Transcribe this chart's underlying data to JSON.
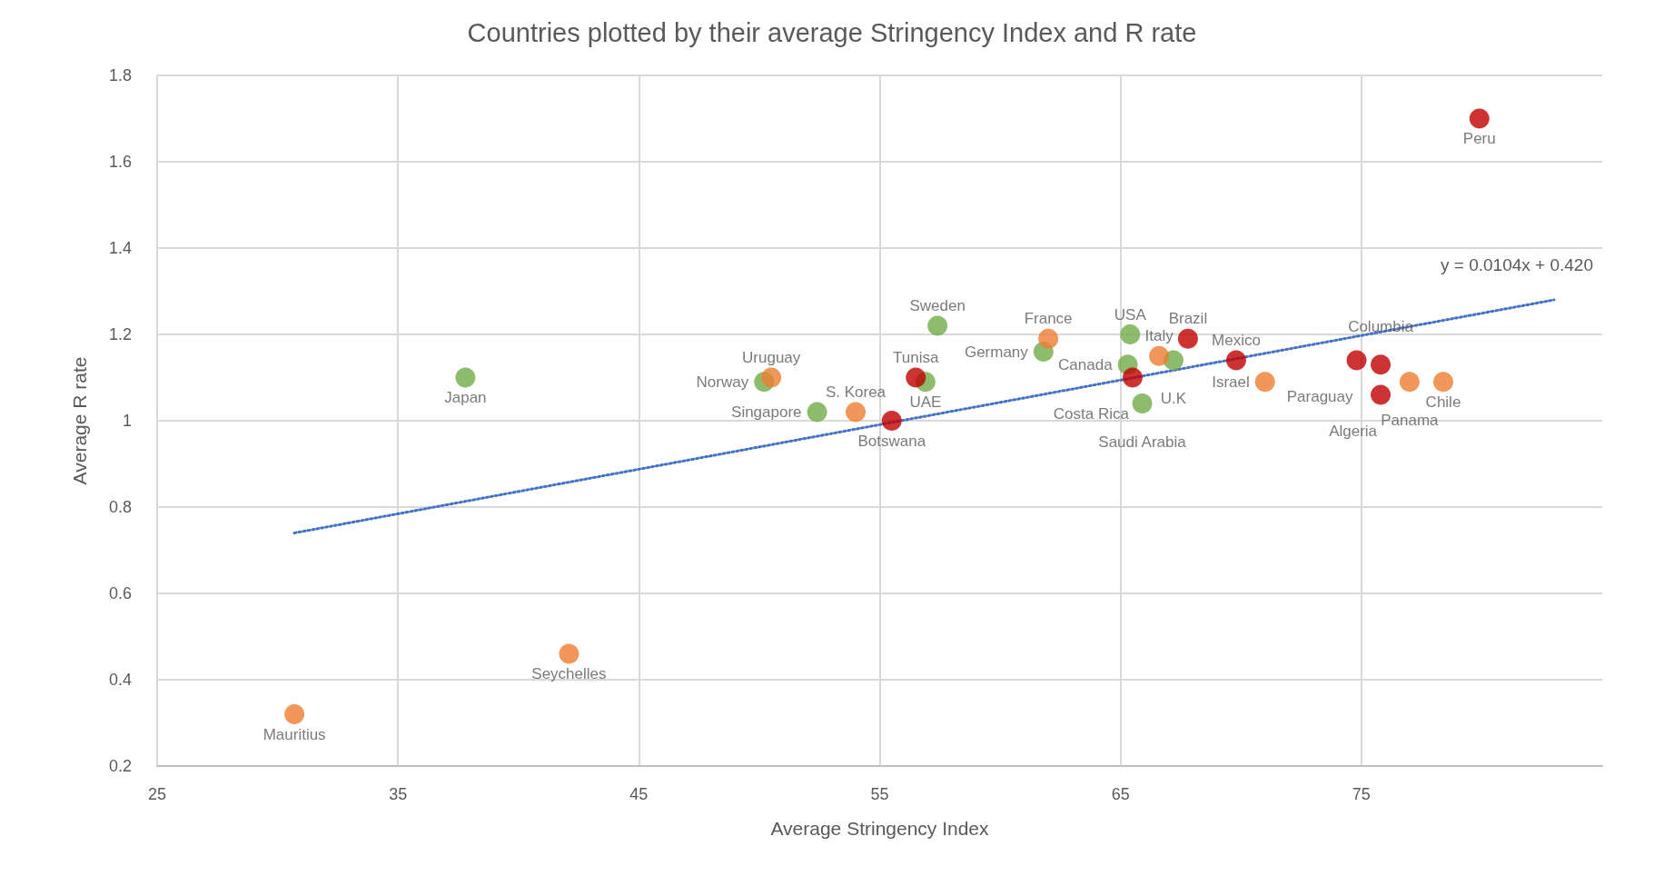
{
  "chart_data": {
    "type": "scatter",
    "title": "Countries plotted by their average Stringency Index and R rate",
    "xlabel": "Average Stringency Index",
    "ylabel": "Average R rate",
    "xlim": [
      25,
      85
    ],
    "xticks": [
      25,
      35,
      45,
      55,
      65,
      75
    ],
    "ylim": [
      0.2,
      1.8
    ],
    "yticks": [
      0.2,
      0.4,
      0.6,
      0.8,
      1,
      1.2,
      1.4,
      1.6,
      1.8
    ],
    "grid": true,
    "marker": "circle",
    "series": [
      {
        "color": "#70ad47",
        "x": [
          37.8,
          50.2,
          52.4,
          57.4,
          56.9,
          61.8,
          65.4,
          65.3,
          67.2,
          65.9
        ],
        "values": [
          1.1,
          1.09,
          1.02,
          1.22,
          1.09,
          1.16,
          1.2,
          1.13,
          1.14,
          1.04
        ],
        "value_labels": [
          "Japan",
          "Norway",
          "Singapore",
          "Sweden",
          "UAE",
          "Germany",
          "USA",
          "Canada",
          "U.K",
          "Saudi Arabia"
        ]
      },
      {
        "color": "#ed7d31",
        "x": [
          50.5,
          54.0,
          62.0,
          66.6,
          71.0,
          77.0,
          78.4,
          42.1,
          30.7
        ],
        "values": [
          1.1,
          1.02,
          1.19,
          1.15,
          1.09,
          1.09,
          1.09,
          0.46,
          0.32
        ],
        "value_labels": [
          "Uruguay",
          "S. Korea",
          "France",
          "Italy",
          "Israel",
          "Panama",
          "Chile",
          "Seychelles",
          "Mauritius"
        ]
      },
      {
        "color": "#c00000",
        "x": [
          56.5,
          55.5,
          65.5,
          67.8,
          69.8,
          74.8,
          75.8,
          75.8,
          79.9
        ],
        "values": [
          1.1,
          1.0,
          1.1,
          1.19,
          1.14,
          1.14,
          1.13,
          1.06,
          1.7
        ],
        "value_labels": [
          "Tunisa",
          "Botswana",
          "Costa Rica",
          "Brazil",
          "Mexico",
          "Paraguay",
          "Columbia",
          "Algeria",
          "Peru"
        ]
      },
      {
        "type": "line",
        "color": "#4472c4",
        "line_style": "dotted",
        "marker": "none",
        "x": [
          30.7,
          83
        ],
        "values": [
          0.74,
          1.28
        ]
      }
    ],
    "annotations": [
      "y = 0.0104x + 0.420"
    ]
  }
}
